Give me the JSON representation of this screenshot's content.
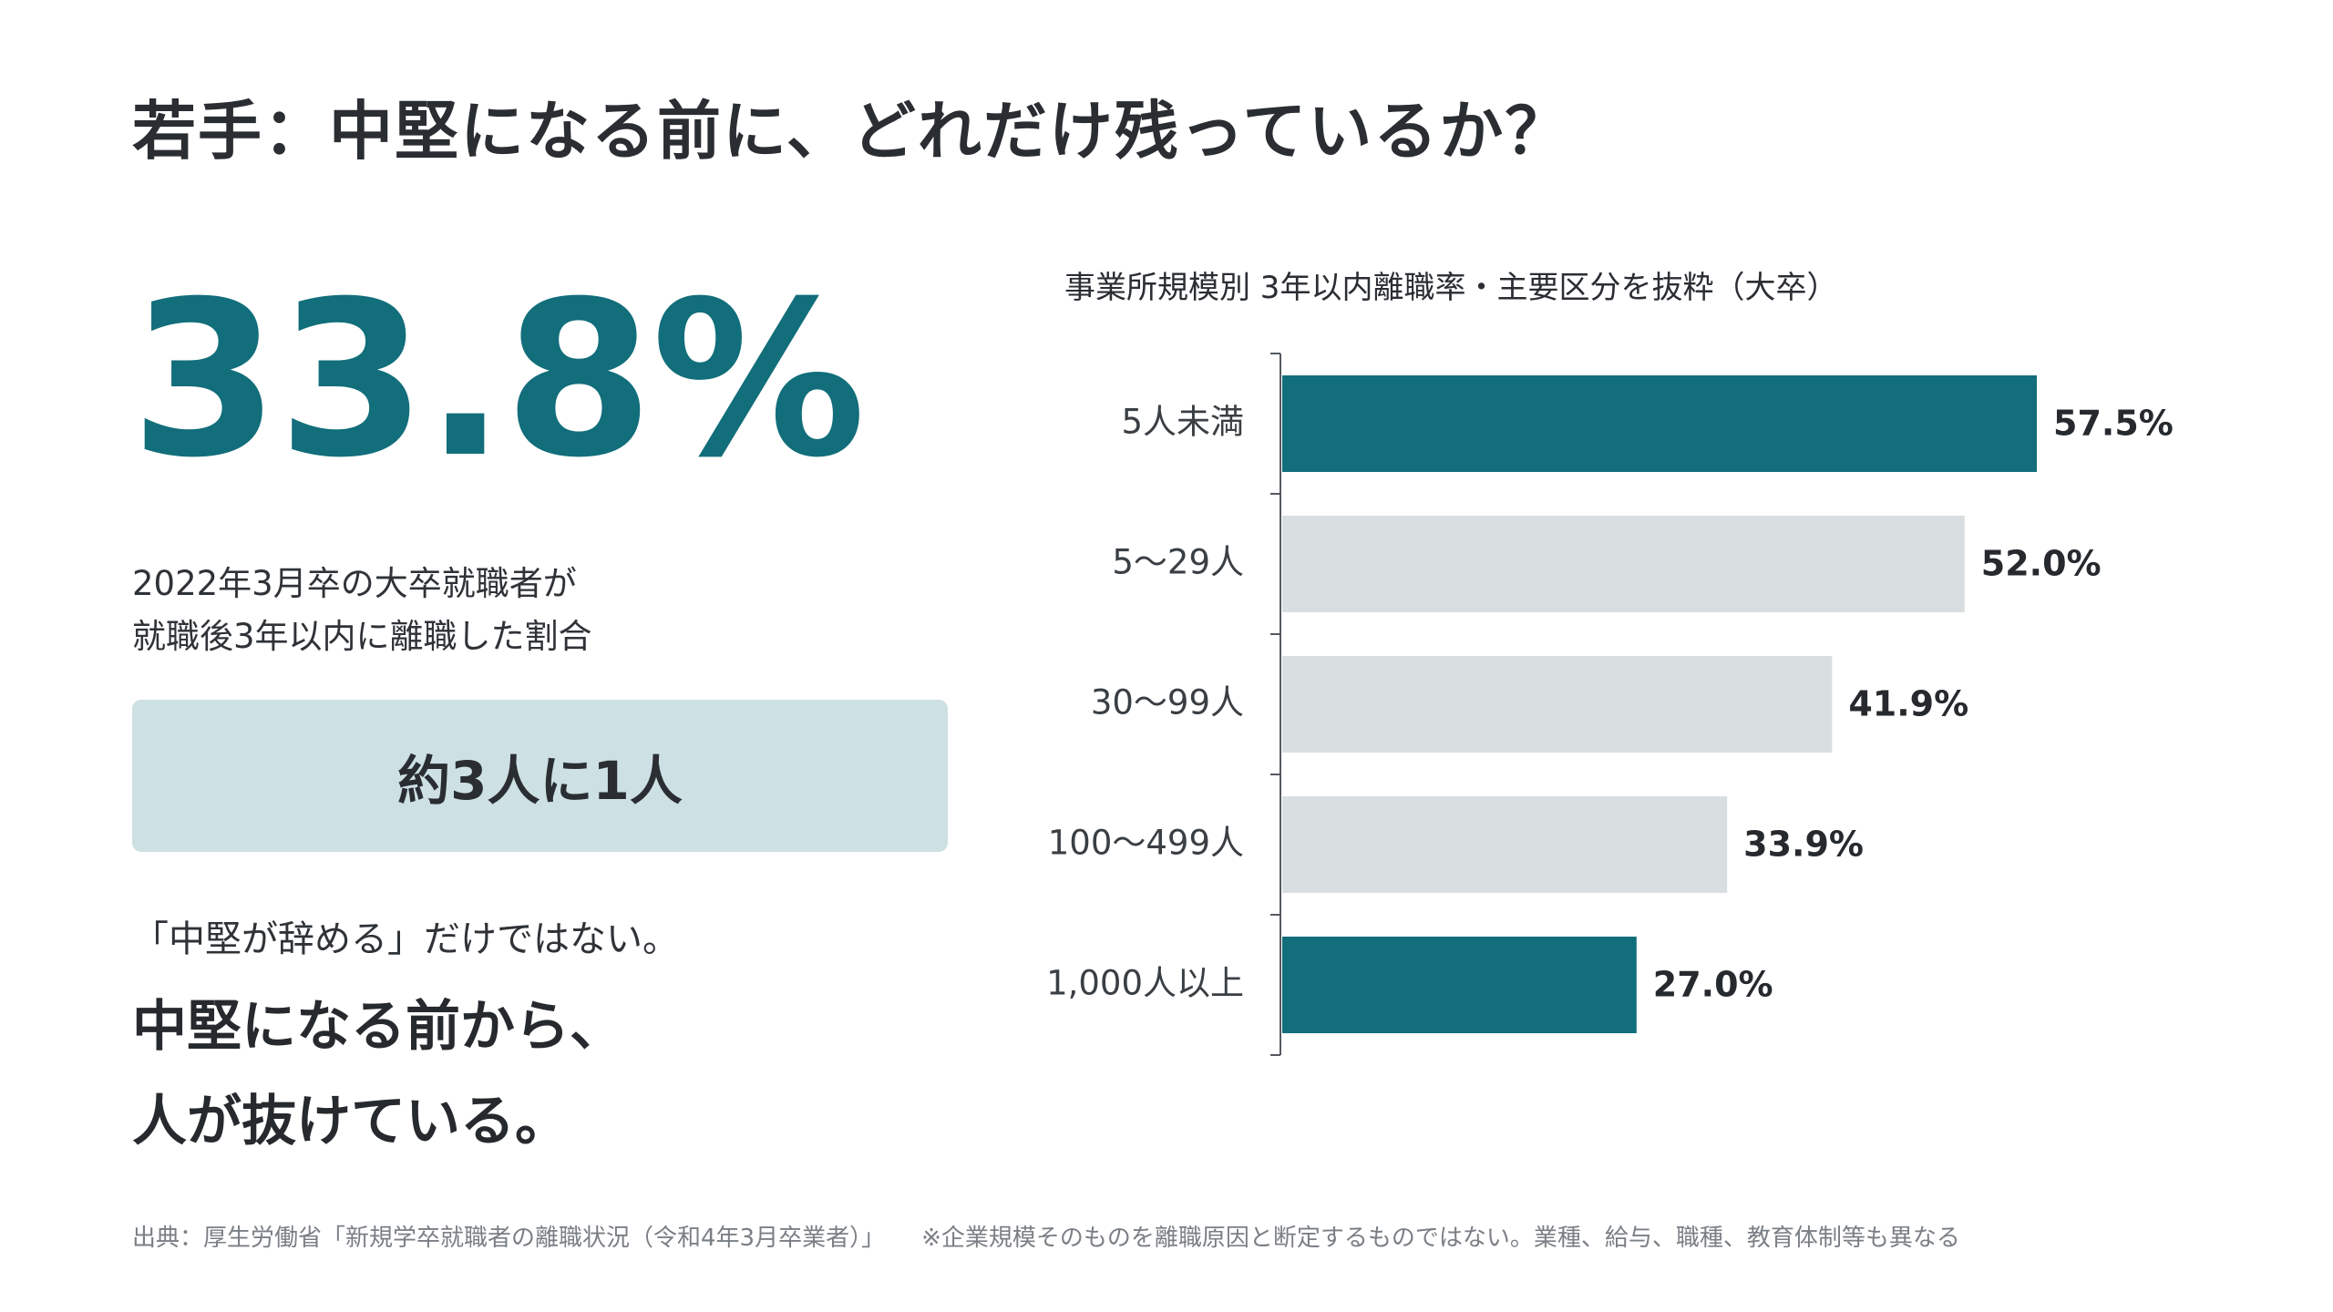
{
  "title": "若手：中堅になる前に、どれだけ残っているか？",
  "big_stat": "33.8%",
  "description": [
    "2022年3月卒の大卒就職者が",
    "就職後3年以内に離職した割合"
  ],
  "callout": "約3人に1人",
  "quote": "「中堅が辞める」だけではない。",
  "conclusion": [
    "中堅になる前から、",
    "人が抜けている。"
  ],
  "colors": {
    "accent": "#116e7a",
    "bar_muted": "#d9dee1",
    "callout_bg": "#cde0e3",
    "text": "#262a2e",
    "footnote": "#7a7f85"
  },
  "chart_data": {
    "type": "bar",
    "orientation": "horizontal",
    "title": "事業所規模別 3年以内離職率・主要区分を抜粋（大卒）",
    "categories": [
      "5人未満",
      "5〜29人",
      "30〜99人",
      "100〜499人",
      "1,000人以上"
    ],
    "values": [
      57.5,
      52.0,
      41.9,
      33.9,
      27.0
    ],
    "value_labels": [
      "57.5%",
      "52.0%",
      "41.9%",
      "33.9%",
      "27.0%"
    ],
    "highlight": [
      true,
      false,
      false,
      false,
      true
    ],
    "xlim": [
      0,
      57.5
    ],
    "grid": false,
    "legend": "none"
  },
  "footer": {
    "source": "出典：厚生労働省「新規学卒就職者の離職状況（令和4年3月卒業者）」",
    "note": "※企業規模そのものを離職原因と断定するものではない。業種、給与、職種、教育体制等も異なる"
  }
}
